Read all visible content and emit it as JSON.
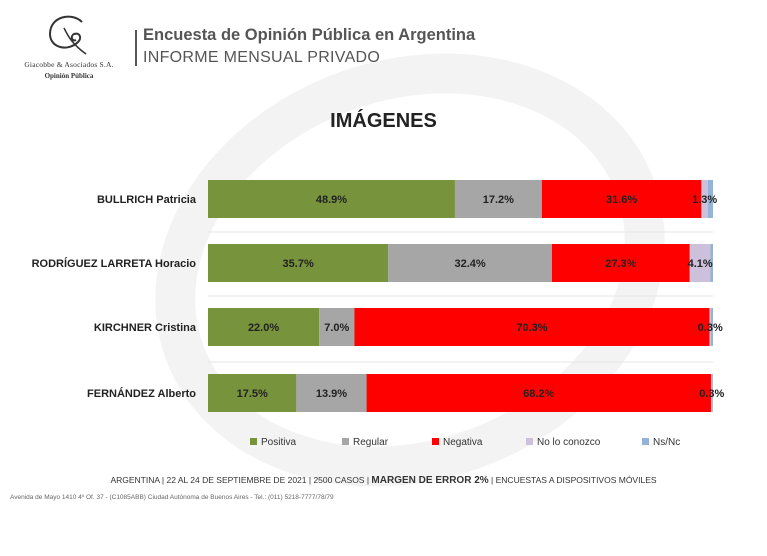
{
  "header": {
    "brand_name": "Giacobbe & Asociados S.A.",
    "brand_sub": "Opinión Pública",
    "title": "Encuesta de Opinión Pública en Argentina",
    "subtitle": "INFORME MENSUAL PRIVADO"
  },
  "chart_data": {
    "type": "bar",
    "orientation": "horizontal",
    "stacked": true,
    "title": "IMÁGENES",
    "categories": [
      "BULLRICH Patricia",
      "RODRÍGUEZ LARRETA Horacio",
      "KIRCHNER Cristina",
      "FERNÁNDEZ Alberto"
    ],
    "series": [
      {
        "name": "Positiva",
        "color": "#77933c",
        "values": [
          48.9,
          35.7,
          22.0,
          17.5
        ]
      },
      {
        "name": "Regular",
        "color": "#a6a6a6",
        "values": [
          17.2,
          32.4,
          7.0,
          13.9
        ]
      },
      {
        "name": "Negativa",
        "color": "#ff0000",
        "values": [
          31.6,
          27.3,
          70.3,
          68.2
        ]
      },
      {
        "name": "No lo conozco",
        "color": "#ccc0da",
        "values": [
          1.3,
          4.1,
          0.3,
          0.3
        ]
      },
      {
        "name": "Ns/Nc",
        "color": "#95b3d7",
        "values": [
          1.0,
          0.5,
          0.4,
          0.1
        ]
      }
    ],
    "data_labels": [
      [
        "48.9%",
        "17.2%",
        "31.6%",
        "1.3%"
      ],
      [
        "35.7%",
        "32.4%",
        "27.3%",
        "4.1%"
      ],
      [
        "22.0%",
        "7.0%",
        "70.3%",
        "0.3%"
      ],
      [
        "17.5%",
        "13.9%",
        "68.2%",
        "0.3%"
      ]
    ],
    "xlim": [
      0,
      100
    ],
    "legend_position": "bottom"
  },
  "footer": {
    "left": "ARGENTINA | 22 AL 24 DE SEPTIEMBRE DE 2021 | 2500 CASOS |",
    "margin": "MARGEN DE ERROR 2%",
    "right": "| ENCUESTAS A DISPOSITIVOS MÓVILES",
    "address": "Avenida de Mayo 1410 4º Of. 37 - (C1085ABB) Ciudad Autónoma de Buenos Aires - Tel.: (011) 5218-7777/78/79"
  }
}
